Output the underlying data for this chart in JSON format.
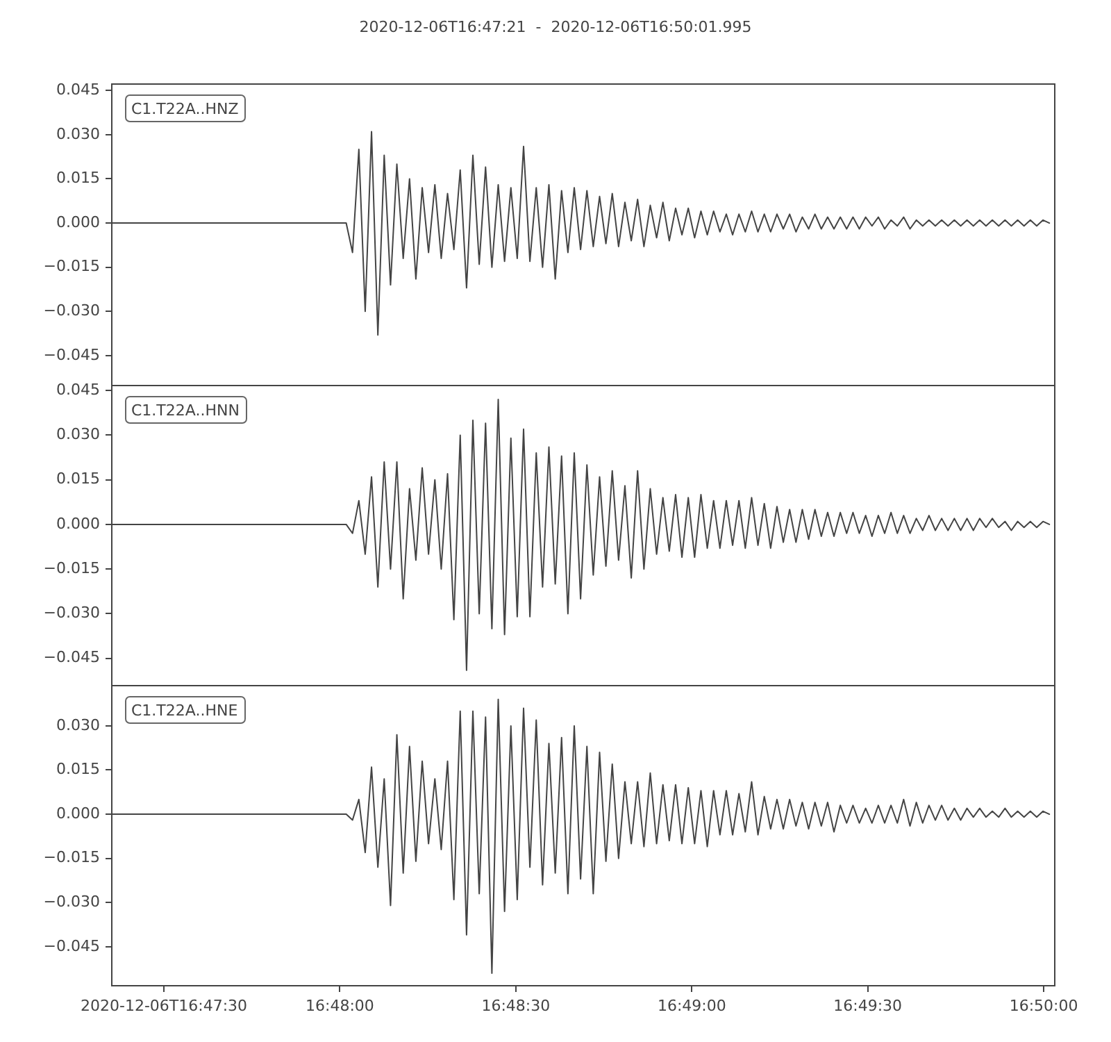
{
  "chart_data": [
    {
      "type": "line",
      "title": "2020-12-06T16:47:21  -  2020-12-06T16:50:01.995",
      "annotations": [
        "C1.T22A..HNZ"
      ],
      "color": "#444444",
      "tick_labels": "y",
      "xlim": [
        16.789167,
        16.833888
      ],
      "ylim": [
        -0.0554,
        0.0474
      ],
      "yticks": [
        {
          "value": 0.045,
          "label": "0.045"
        },
        {
          "value": 0.03,
          "label": "0.030"
        },
        {
          "value": 0.015,
          "label": "0.015"
        },
        {
          "value": 0,
          "label": "0.000"
        },
        {
          "value": -0.015,
          "label": "−0.015"
        },
        {
          "value": -0.03,
          "label": "−0.030"
        },
        {
          "value": -0.045,
          "label": "−0.045"
        }
      ],
      "x": [
        16.789167,
        16.8003,
        16.8006,
        16.8009,
        16.8012,
        16.8015,
        16.8018,
        16.8021,
        16.8024,
        16.8027,
        16.803,
        16.8033,
        16.8036,
        16.8039,
        16.8042,
        16.8045,
        16.8048,
        16.8051,
        16.8054,
        16.8057,
        16.806,
        16.8063,
        16.8066,
        16.8069,
        16.8072,
        16.8075,
        16.8078,
        16.8081,
        16.8084,
        16.8087,
        16.809,
        16.8093,
        16.8096,
        16.8099,
        16.8102,
        16.8105,
        16.8108,
        16.8111,
        16.8114,
        16.8117,
        16.812,
        16.8123,
        16.8126,
        16.8129,
        16.8132,
        16.8135,
        16.8138,
        16.8141,
        16.8144,
        16.8147,
        16.815,
        16.8153,
        16.8156,
        16.8159,
        16.8162,
        16.8165,
        16.8168,
        16.8171,
        16.8174,
        16.8177,
        16.818,
        16.8183,
        16.8186,
        16.8189,
        16.8192,
        16.8195,
        16.8198,
        16.8201,
        16.8204,
        16.8207,
        16.821,
        16.8213,
        16.8216,
        16.8219,
        16.8222,
        16.8225,
        16.8228,
        16.8231,
        16.8234,
        16.8237,
        16.824,
        16.8243,
        16.8246,
        16.8249,
        16.8252,
        16.8255,
        16.8258,
        16.8261,
        16.8264,
        16.8267,
        16.827,
        16.8273,
        16.8276,
        16.8279,
        16.8282,
        16.8285,
        16.8288,
        16.8291,
        16.8294,
        16.8297,
        16.83,
        16.8303,
        16.8306,
        16.8309,
        16.8312,
        16.8315,
        16.8318,
        16.8321,
        16.8324,
        16.8327,
        16.833,
        16.8333,
        16.8336
      ],
      "values": [
        0,
        0,
        -0.01,
        0.025,
        -0.03,
        0.031,
        -0.038,
        0.023,
        -0.021,
        0.02,
        -0.012,
        0.015,
        -0.019,
        0.012,
        -0.01,
        0.013,
        -0.012,
        0.01,
        -0.009,
        0.018,
        -0.022,
        0.023,
        -0.014,
        0.019,
        -0.015,
        0.013,
        -0.013,
        0.012,
        -0.012,
        0.026,
        -0.013,
        0.012,
        -0.015,
        0.013,
        -0.019,
        0.011,
        -0.01,
        0.012,
        -0.009,
        0.011,
        -0.008,
        0.009,
        -0.007,
        0.01,
        -0.008,
        0.007,
        -0.006,
        0.008,
        -0.008,
        0.006,
        -0.005,
        0.007,
        -0.006,
        0.005,
        -0.004,
        0.005,
        -0.005,
        0.004,
        -0.004,
        0.004,
        -0.003,
        0.003,
        -0.004,
        0.003,
        -0.003,
        0.004,
        -0.003,
        0.003,
        -0.003,
        0.003,
        -0.002,
        0.003,
        -0.003,
        0.002,
        -0.002,
        0.003,
        -0.002,
        0.002,
        -0.002,
        0.002,
        -0.002,
        0.002,
        -0.002,
        0.002,
        -0.001,
        0.002,
        -0.002,
        0.001,
        -0.001,
        0.002,
        -0.002,
        0.001,
        -0.001,
        0.001,
        -0.001,
        0.001,
        -0.001,
        0.001,
        -0.001,
        0.001,
        -0.001,
        0.001,
        -0.001,
        0.001,
        -0.001,
        0.001,
        -0.001,
        0.001,
        -0.001,
        0.001,
        -0.001,
        0.001,
        0
      ]
    },
    {
      "type": "line",
      "annotations": [
        "C1.T22A..HNN"
      ],
      "color": "#444444",
      "tick_labels": "y",
      "xlim": [
        16.789167,
        16.833888
      ],
      "ylim": [
        -0.0544,
        0.0469
      ],
      "yticks": [
        {
          "value": 0.045,
          "label": "0.045"
        },
        {
          "value": 0.03,
          "label": "0.030"
        },
        {
          "value": 0.015,
          "label": "0.015"
        },
        {
          "value": 0,
          "label": "0.000"
        },
        {
          "value": -0.015,
          "label": "−0.015"
        },
        {
          "value": -0.03,
          "label": "−0.030"
        },
        {
          "value": -0.045,
          "label": "−0.045"
        }
      ],
      "x": [
        16.789167,
        16.8003,
        16.8006,
        16.8009,
        16.8012,
        16.8015,
        16.8018,
        16.8021,
        16.8024,
        16.8027,
        16.803,
        16.8033,
        16.8036,
        16.8039,
        16.8042,
        16.8045,
        16.8048,
        16.8051,
        16.8054,
        16.8057,
        16.806,
        16.8063,
        16.8066,
        16.8069,
        16.8072,
        16.8075,
        16.8078,
        16.8081,
        16.8084,
        16.8087,
        16.809,
        16.8093,
        16.8096,
        16.8099,
        16.8102,
        16.8105,
        16.8108,
        16.8111,
        16.8114,
        16.8117,
        16.812,
        16.8123,
        16.8126,
        16.8129,
        16.8132,
        16.8135,
        16.8138,
        16.8141,
        16.8144,
        16.8147,
        16.815,
        16.8153,
        16.8156,
        16.8159,
        16.8162,
        16.8165,
        16.8168,
        16.8171,
        16.8174,
        16.8177,
        16.818,
        16.8183,
        16.8186,
        16.8189,
        16.8192,
        16.8195,
        16.8198,
        16.8201,
        16.8204,
        16.8207,
        16.821,
        16.8213,
        16.8216,
        16.8219,
        16.8222,
        16.8225,
        16.8228,
        16.8231,
        16.8234,
        16.8237,
        16.824,
        16.8243,
        16.8246,
        16.8249,
        16.8252,
        16.8255,
        16.8258,
        16.8261,
        16.8264,
        16.8267,
        16.827,
        16.8273,
        16.8276,
        16.8279,
        16.8282,
        16.8285,
        16.8288,
        16.8291,
        16.8294,
        16.8297,
        16.83,
        16.8303,
        16.8306,
        16.8309,
        16.8312,
        16.8315,
        16.8318,
        16.8321,
        16.8324,
        16.8327,
        16.833,
        16.8333,
        16.8336
      ],
      "values": [
        0,
        0,
        -0.003,
        0.008,
        -0.01,
        0.016,
        -0.021,
        0.021,
        -0.015,
        0.021,
        -0.025,
        0.012,
        -0.012,
        0.019,
        -0.01,
        0.015,
        -0.015,
        0.017,
        -0.032,
        0.03,
        -0.049,
        0.035,
        -0.03,
        0.034,
        -0.035,
        0.042,
        -0.037,
        0.029,
        -0.031,
        0.032,
        -0.031,
        0.024,
        -0.021,
        0.026,
        -0.02,
        0.023,
        -0.03,
        0.024,
        -0.025,
        0.02,
        -0.017,
        0.016,
        -0.014,
        0.018,
        -0.012,
        0.013,
        -0.018,
        0.018,
        -0.015,
        0.012,
        -0.01,
        0.009,
        -0.009,
        0.01,
        -0.011,
        0.009,
        -0.011,
        0.01,
        -0.008,
        0.008,
        -0.008,
        0.008,
        -0.007,
        0.008,
        -0.008,
        0.009,
        -0.007,
        0.007,
        -0.008,
        0.006,
        -0.006,
        0.005,
        -0.006,
        0.005,
        -0.005,
        0.005,
        -0.004,
        0.004,
        -0.004,
        0.004,
        -0.003,
        0.004,
        -0.003,
        0.003,
        -0.004,
        0.003,
        -0.003,
        0.004,
        -0.003,
        0.003,
        -0.003,
        0.002,
        -0.002,
        0.003,
        -0.002,
        0.002,
        -0.002,
        0.002,
        -0.002,
        0.002,
        -0.002,
        0.002,
        -0.001,
        0.002,
        -0.001,
        0.001,
        -0.002,
        0.001,
        -0.001,
        0.001,
        -0.001,
        0.001,
        0
      ]
    },
    {
      "type": "line",
      "annotations": [
        "C1.T22A..HNE"
      ],
      "color": "#444444",
      "xlim": [
        16.789167,
        16.833888
      ],
      "ylim": [
        -0.0585,
        0.0439
      ],
      "xticks": [
        {
          "value": 16.791667,
          "label": "2020-12-06T16:47:30"
        },
        {
          "value": 16.8,
          "label": "16:48:00"
        },
        {
          "value": 16.808333,
          "label": "16:48:30"
        },
        {
          "value": 16.816667,
          "label": "16:49:00"
        },
        {
          "value": 16.825,
          "label": "16:49:30"
        },
        {
          "value": 16.833333,
          "label": "16:50:00"
        }
      ],
      "yticks": [
        {
          "value": 0.03,
          "label": "0.030"
        },
        {
          "value": 0.015,
          "label": "0.015"
        },
        {
          "value": 0,
          "label": "0.000"
        },
        {
          "value": -0.015,
          "label": "−0.015"
        },
        {
          "value": -0.03,
          "label": "−0.030"
        },
        {
          "value": -0.045,
          "label": "−0.045"
        }
      ],
      "x": [
        16.789167,
        16.8003,
        16.8006,
        16.8009,
        16.8012,
        16.8015,
        16.8018,
        16.8021,
        16.8024,
        16.8027,
        16.803,
        16.8033,
        16.8036,
        16.8039,
        16.8042,
        16.8045,
        16.8048,
        16.8051,
        16.8054,
        16.8057,
        16.806,
        16.8063,
        16.8066,
        16.8069,
        16.8072,
        16.8075,
        16.8078,
        16.8081,
        16.8084,
        16.8087,
        16.809,
        16.8093,
        16.8096,
        16.8099,
        16.8102,
        16.8105,
        16.8108,
        16.8111,
        16.8114,
        16.8117,
        16.812,
        16.8123,
        16.8126,
        16.8129,
        16.8132,
        16.8135,
        16.8138,
        16.8141,
        16.8144,
        16.8147,
        16.815,
        16.8153,
        16.8156,
        16.8159,
        16.8162,
        16.8165,
        16.8168,
        16.8171,
        16.8174,
        16.8177,
        16.818,
        16.8183,
        16.8186,
        16.8189,
        16.8192,
        16.8195,
        16.8198,
        16.8201,
        16.8204,
        16.8207,
        16.821,
        16.8213,
        16.8216,
        16.8219,
        16.8222,
        16.8225,
        16.8228,
        16.8231,
        16.8234,
        16.8237,
        16.824,
        16.8243,
        16.8246,
        16.8249,
        16.8252,
        16.8255,
        16.8258,
        16.8261,
        16.8264,
        16.8267,
        16.827,
        16.8273,
        16.8276,
        16.8279,
        16.8282,
        16.8285,
        16.8288,
        16.8291,
        16.8294,
        16.8297,
        16.83,
        16.8303,
        16.8306,
        16.8309,
        16.8312,
        16.8315,
        16.8318,
        16.8321,
        16.8324,
        16.8327,
        16.833,
        16.8333,
        16.8336
      ],
      "values": [
        0,
        0,
        -0.002,
        0.005,
        -0.013,
        0.016,
        -0.018,
        0.012,
        -0.031,
        0.027,
        -0.02,
        0.023,
        -0.016,
        0.018,
        -0.01,
        0.012,
        -0.012,
        0.018,
        -0.029,
        0.035,
        -0.041,
        0.035,
        -0.027,
        0.033,
        -0.054,
        0.039,
        -0.033,
        0.03,
        -0.029,
        0.036,
        -0.018,
        0.032,
        -0.024,
        0.024,
        -0.02,
        0.026,
        -0.027,
        0.03,
        -0.022,
        0.023,
        -0.027,
        0.021,
        -0.016,
        0.017,
        -0.015,
        0.011,
        -0.01,
        0.011,
        -0.011,
        0.014,
        -0.01,
        0.01,
        -0.009,
        0.01,
        -0.01,
        0.009,
        -0.01,
        0.008,
        -0.011,
        0.008,
        -0.007,
        0.008,
        -0.007,
        0.007,
        -0.006,
        0.011,
        -0.007,
        0.006,
        -0.005,
        0.005,
        -0.005,
        0.005,
        -0.004,
        0.004,
        -0.005,
        0.004,
        -0.004,
        0.004,
        -0.006,
        0.003,
        -0.003,
        0.003,
        -0.003,
        0.002,
        -0.003,
        0.003,
        -0.003,
        0.003,
        -0.003,
        0.005,
        -0.004,
        0.004,
        -0.003,
        0.003,
        -0.002,
        0.003,
        -0.002,
        0.002,
        -0.002,
        0.002,
        -0.001,
        0.002,
        -0.001,
        0.001,
        -0.001,
        0.002,
        -0.001,
        0.001,
        -0.001,
        0.001,
        -0.001,
        0.001,
        0
      ]
    }
  ]
}
